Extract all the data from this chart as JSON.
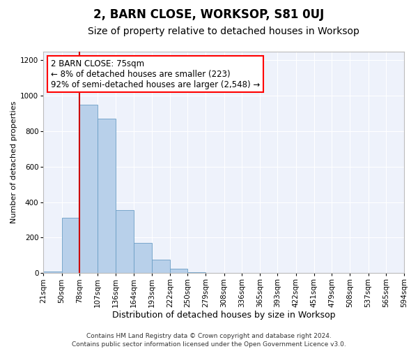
{
  "title": "2, BARN CLOSE, WORKSOP, S81 0UJ",
  "subtitle": "Size of property relative to detached houses in Worksop",
  "xlabel": "Distribution of detached houses by size in Worksop",
  "ylabel": "Number of detached properties",
  "bar_values": [
    10,
    310,
    950,
    870,
    355,
    170,
    75,
    25,
    5,
    0,
    0,
    0,
    0,
    0,
    0,
    0,
    0,
    0,
    0,
    0
  ],
  "bin_edges": [
    21,
    50,
    78,
    107,
    136,
    164,
    193,
    222,
    250,
    279,
    308,
    336,
    365,
    393,
    422,
    451,
    479,
    508,
    537,
    565,
    594
  ],
  "tick_labels": [
    "21sqm",
    "50sqm",
    "78sqm",
    "107sqm",
    "136sqm",
    "164sqm",
    "193sqm",
    "222sqm",
    "250sqm",
    "279sqm",
    "308sqm",
    "336sqm",
    "365sqm",
    "393sqm",
    "422sqm",
    "451sqm",
    "479sqm",
    "508sqm",
    "537sqm",
    "565sqm",
    "594sqm"
  ],
  "bar_color": "#b8d0ea",
  "bar_edge_color": "#6a9ec5",
  "vline_x": 78,
  "vline_color": "#cc0000",
  "annotation_line1": "2 BARN CLOSE: 75sqm",
  "annotation_line2": "← 8% of detached houses are smaller (223)",
  "annotation_line3": "92% of semi-detached houses are larger (2,548) →",
  "ylim": [
    0,
    1250
  ],
  "yticks": [
    0,
    200,
    400,
    600,
    800,
    1000,
    1200
  ],
  "background_color": "#eef2fb",
  "grid_color": "#ffffff",
  "fig_background": "#ffffff",
  "footer_text": "Contains HM Land Registry data © Crown copyright and database right 2024.\nContains public sector information licensed under the Open Government Licence v3.0.",
  "title_fontsize": 12,
  "subtitle_fontsize": 10,
  "xlabel_fontsize": 9,
  "ylabel_fontsize": 8,
  "tick_fontsize": 7.5,
  "annotation_fontsize": 8.5,
  "footer_fontsize": 6.5
}
